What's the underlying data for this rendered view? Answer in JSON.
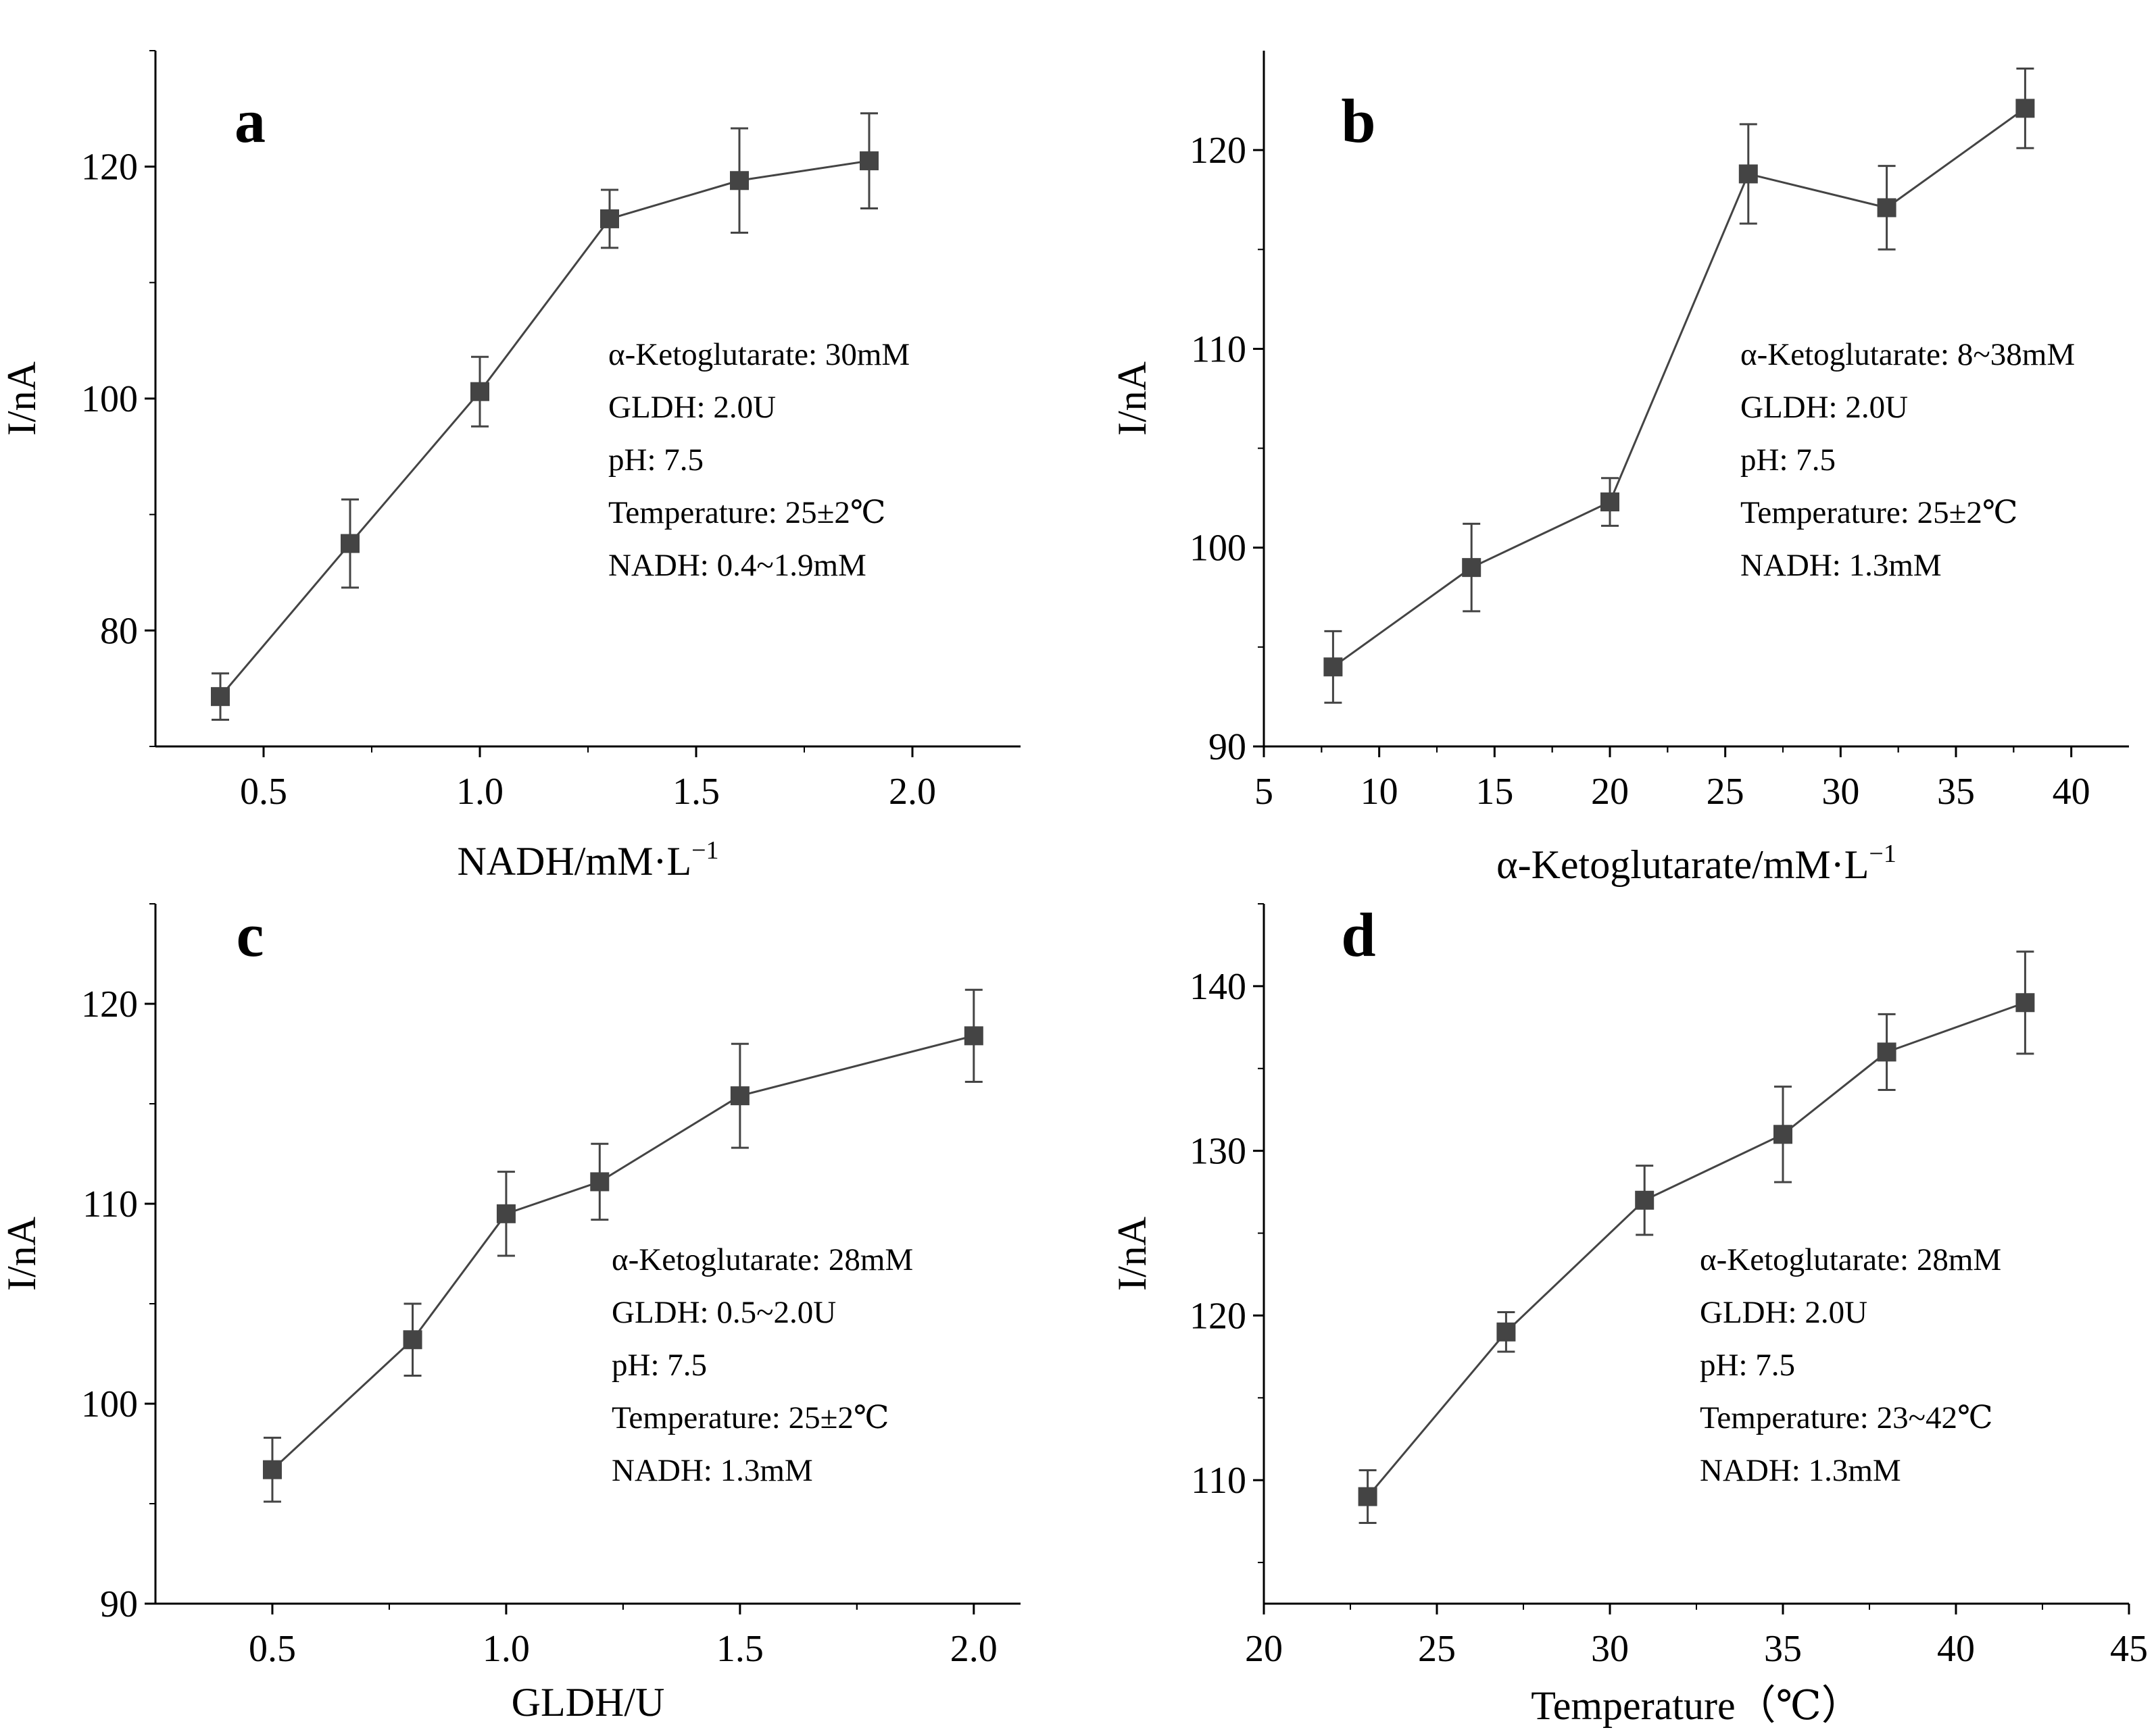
{
  "chart_data": [
    {
      "panel": "a",
      "type": "line",
      "x": [
        0.4,
        0.7,
        1.0,
        1.3,
        1.6,
        1.9
      ],
      "values": [
        74.3,
        87.5,
        100.6,
        115.5,
        118.8,
        120.5
      ],
      "errors": [
        2.0,
        3.8,
        3.0,
        2.5,
        4.5,
        4.1
      ],
      "xlabel": "NADH/mM·L",
      "xlabel_sup": "−1",
      "ylabel": "I/nA",
      "xlim": [
        0.25,
        2.25
      ],
      "ylim": [
        70,
        130
      ],
      "xticks": [
        0.5,
        1.0,
        1.5,
        2.0
      ],
      "xtick_labels": [
        "0.5",
        "1.0",
        "1.5",
        "2.0"
      ],
      "yticks": [
        80,
        100,
        120
      ],
      "ytick_labels": [
        "80",
        "100",
        "120"
      ],
      "yminor": [
        70,
        90,
        110,
        130
      ],
      "annotations": [
        "α-Ketoglutarate: 30mM",
        "GLDH: 2.0U",
        "pH: 7.5",
        "Temperature: 25±2℃",
        "NADH: 0.4~1.9mM"
      ]
    },
    {
      "panel": "b",
      "type": "line",
      "x": [
        8,
        14,
        20,
        26,
        32,
        38
      ],
      "values": [
        94.0,
        99.0,
        102.3,
        118.8,
        117.1,
        122.1
      ],
      "errors": [
        1.8,
        2.2,
        1.2,
        2.5,
        2.1,
        2.0
      ],
      "xlabel": "α-Ketoglutarate/mM·L",
      "xlabel_sup": "−1",
      "ylabel": "I/nA",
      "xlim": [
        5,
        42.5
      ],
      "ylim": [
        90,
        125
      ],
      "xticks": [
        5,
        10,
        15,
        20,
        25,
        30,
        35,
        40
      ],
      "xtick_labels": [
        "5",
        "10",
        "15",
        "20",
        "25",
        "30",
        "35",
        "40"
      ],
      "yticks": [
        90,
        100,
        110,
        120
      ],
      "ytick_labels": [
        "90",
        "100",
        "110",
        "120"
      ],
      "yminor": [
        95,
        105,
        115
      ],
      "annotations": [
        "α-Ketoglutarate: 8~38mM",
        "GLDH: 2.0U",
        "pH: 7.5",
        "Temperature: 25±2℃",
        "NADH: 1.3mM"
      ]
    },
    {
      "panel": "c",
      "type": "line",
      "x": [
        0.5,
        0.8,
        1.0,
        1.2,
        1.5,
        2.0
      ],
      "values": [
        96.7,
        103.2,
        109.5,
        111.1,
        115.4,
        118.4
      ],
      "errors": [
        1.6,
        1.8,
        2.1,
        1.9,
        2.6,
        2.3
      ],
      "xlabel": "GLDH/U",
      "xlabel_sup": "",
      "ylabel": "I/nA",
      "xlim": [
        0.25,
        2.1
      ],
      "ylim": [
        90,
        125
      ],
      "xticks": [
        0.5,
        1.0,
        1.5,
        2.0
      ],
      "xtick_labels": [
        "0.5",
        "1.0",
        "1.5",
        "2.0"
      ],
      "yticks": [
        90,
        100,
        110,
        120
      ],
      "ytick_labels": [
        "90",
        "100",
        "110",
        "120"
      ],
      "yminor": [
        95,
        105,
        115,
        125
      ],
      "annotations": [
        "α-Ketoglutarate: 28mM",
        "GLDH: 0.5~2.0U",
        "pH: 7.5",
        "Temperature: 25±2℃",
        "NADH: 1.3mM"
      ]
    },
    {
      "panel": "d",
      "type": "line",
      "x": [
        23,
        27,
        31,
        35,
        38,
        42
      ],
      "values": [
        109.0,
        119.0,
        127.0,
        131.0,
        136.0,
        139.0
      ],
      "errors": [
        1.6,
        1.2,
        2.1,
        2.9,
        2.3,
        3.1
      ],
      "xlabel": "Temperature（℃）",
      "xlabel_sup": "",
      "ylabel": "I/nA",
      "xlim": [
        20,
        45
      ],
      "ylim": [
        102.5,
        145
      ],
      "xticks": [
        20,
        25,
        30,
        35,
        40,
        45
      ],
      "xtick_labels": [
        "20",
        "25",
        "30",
        "35",
        "40",
        "45"
      ],
      "yticks": [
        110,
        120,
        130,
        140
      ],
      "ytick_labels": [
        "110",
        "120",
        "130",
        "140"
      ],
      "yminor": [
        105,
        115,
        125,
        135,
        145
      ],
      "annotations": [
        "α-Ketoglutarate: 28mM",
        "GLDH: 2.0U",
        "pH: 7.5",
        "Temperature: 23~42℃",
        "NADH: 1.3mM"
      ]
    }
  ],
  "style": {
    "line_color": "#444444",
    "marker_color": "#444444",
    "axis_color": "#000000"
  }
}
